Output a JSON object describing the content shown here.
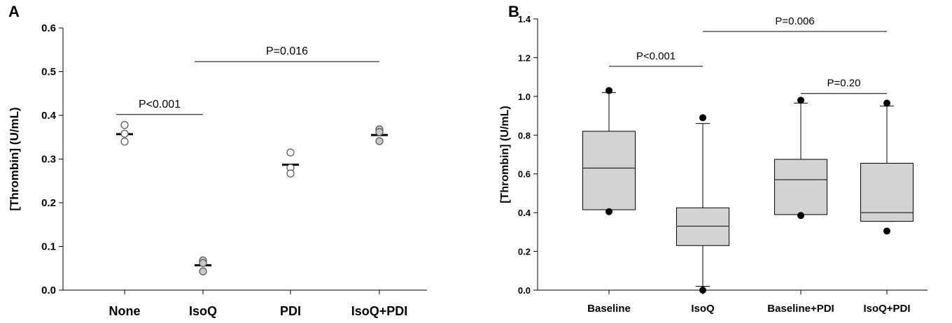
{
  "chart_data": [
    {
      "panel_label": "A",
      "type": "scatter",
      "ylabel": "[Thrombin] (U/mL)",
      "xlabel": "",
      "ylim": [
        0,
        0.6
      ],
      "yticks": [
        "0.0",
        "0.1",
        "0.2",
        "0.3",
        "0.4",
        "0.5",
        "0.6"
      ],
      "categories": [
        "None",
        "IsoQ",
        "PDI",
        "IsoQ+PDI"
      ],
      "points": [
        {
          "category": "None",
          "values": [
            0.378,
            0.358,
            0.34
          ],
          "mean": 0.357,
          "fill": "#ffffff"
        },
        {
          "category": "IsoQ",
          "values": [
            0.068,
            0.062,
            0.043
          ],
          "mean": 0.057,
          "fill": "#c8c8c8"
        },
        {
          "category": "PDI",
          "values": [
            0.315,
            0.28,
            0.267
          ],
          "mean": 0.287,
          "fill": "#ffffff"
        },
        {
          "category": "IsoQ+PDI",
          "values": [
            0.368,
            0.362,
            0.341
          ],
          "mean": 0.355,
          "fill": "#c8c8c8"
        }
      ],
      "annotations": [
        {
          "text": "P<0.001",
          "from": "None",
          "to": "IsoQ",
          "y": 0.402
        },
        {
          "text": "P=0.016",
          "from": "IsoQ",
          "to": "IsoQ+PDI",
          "y": 0.523
        }
      ],
      "grid": false
    },
    {
      "panel_label": "B",
      "type": "box",
      "ylabel": "[Thrombin] (U/mL)",
      "xlabel": "",
      "ylim": [
        0,
        1.4
      ],
      "yticks": [
        "0.0",
        "0.2",
        "0.4",
        "0.6",
        "0.8",
        "1.0",
        "1.2",
        "1.4"
      ],
      "categories": [
        "Baseline",
        "IsoQ",
        "Baseline+PDI",
        "IsoQ+PDI"
      ],
      "boxes": [
        {
          "category": "Baseline",
          "whisker_low": 0.415,
          "q1": 0.415,
          "median": 0.63,
          "q3": 0.82,
          "whisker_high": 1.02,
          "outliers": [
            1.03,
            0.405
          ]
        },
        {
          "category": "IsoQ",
          "whisker_low": 0.02,
          "q1": 0.23,
          "median": 0.33,
          "q3": 0.425,
          "whisker_high": 0.86,
          "outliers": [
            0.89,
            0.0
          ]
        },
        {
          "category": "Baseline+PDI",
          "whisker_low": 0.39,
          "q1": 0.39,
          "median": 0.57,
          "q3": 0.675,
          "whisker_high": 0.965,
          "outliers": [
            0.98,
            0.385
          ]
        },
        {
          "category": "IsoQ+PDI",
          "whisker_low": 0.355,
          "q1": 0.355,
          "median": 0.4,
          "q3": 0.655,
          "whisker_high": 0.95,
          "outliers": [
            0.965,
            0.305
          ]
        }
      ],
      "box_fill": "#d3d3d3",
      "annotations": [
        {
          "text": "P<0.001",
          "from": "Baseline",
          "to": "IsoQ",
          "y": 1.155
        },
        {
          "text": "P=0.006",
          "from": "IsoQ",
          "to": "IsoQ+PDI",
          "y": 1.335
        },
        {
          "text": "P=0.20",
          "from": "Baseline+PDI",
          "to": "IsoQ+PDI",
          "y": 1.015
        }
      ],
      "grid": false
    }
  ]
}
